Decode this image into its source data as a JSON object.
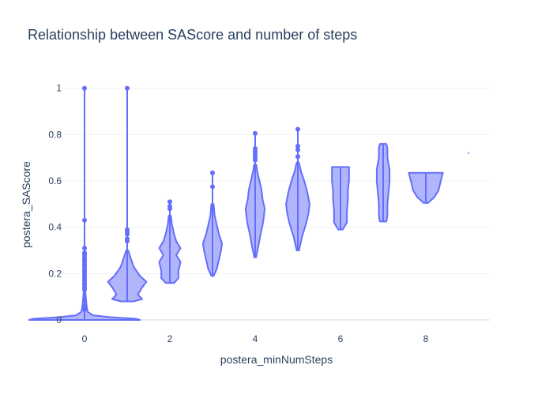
{
  "chart_data": {
    "type": "violin",
    "title": "Relationship between SAScore and number of steps",
    "xlabel": "postera_minNumSteps",
    "ylabel": "postera_SAScore",
    "xlim": [
      -0.5,
      9.5
    ],
    "ylim": [
      0,
      1.04
    ],
    "x_ticks": [
      0,
      2,
      4,
      6,
      8
    ],
    "y_ticks": [
      0,
      0.2,
      0.4,
      0.6,
      0.8,
      1
    ],
    "y_tick_labels": [
      "0",
      "0.2",
      "0.4",
      "0.6",
      "0.8",
      "1"
    ],
    "grid": true,
    "legend": "none",
    "colors": {
      "line": "#636efa",
      "fill": "#636efa",
      "grid": "#eef0f5",
      "text": "#2a3f5f"
    },
    "violins": [
      {
        "x": 0,
        "whisker": [
          0,
          1.0
        ],
        "profile": [
          [
            0.0,
            0.26
          ],
          [
            0.005,
            0.24
          ],
          [
            0.012,
            0.12
          ],
          [
            0.02,
            0.04
          ],
          [
            0.035,
            0.015
          ],
          [
            0.06,
            0.01
          ],
          [
            0.12,
            0.004
          ]
        ],
        "outliers": [
          0.045,
          0.06,
          0.13,
          0.14,
          0.15,
          0.16,
          0.17,
          0.18,
          0.19,
          0.2,
          0.21,
          0.22,
          0.23,
          0.24,
          0.25,
          0.26,
          0.27,
          0.28,
          0.29,
          0.31,
          0.43,
          1.0
        ]
      },
      {
        "x": 1,
        "whisker": [
          0.08,
          1.0
        ],
        "profile": [
          [
            0.08,
            0.03
          ],
          [
            0.09,
            0.07
          ],
          [
            0.11,
            0.05
          ],
          [
            0.14,
            0.07
          ],
          [
            0.165,
            0.09
          ],
          [
            0.19,
            0.06
          ],
          [
            0.23,
            0.03
          ],
          [
            0.27,
            0.015
          ],
          [
            0.3,
            0.005
          ]
        ],
        "outliers": [
          0.34,
          0.35,
          0.37,
          0.38,
          0.39,
          1.0
        ]
      },
      {
        "x": 2,
        "whisker": [
          0.16,
          0.51
        ],
        "profile": [
          [
            0.16,
            0.02
          ],
          [
            0.18,
            0.04
          ],
          [
            0.21,
            0.04
          ],
          [
            0.25,
            0.05
          ],
          [
            0.28,
            0.03
          ],
          [
            0.31,
            0.05
          ],
          [
            0.34,
            0.03
          ],
          [
            0.37,
            0.02
          ],
          [
            0.41,
            0.01
          ],
          [
            0.45,
            0.005
          ]
        ],
        "outliers": [
          0.48,
          0.49,
          0.51
        ]
      },
      {
        "x": 3,
        "whisker": [
          0.19,
          0.635
        ],
        "profile": [
          [
            0.19,
            0.005
          ],
          [
            0.22,
            0.02
          ],
          [
            0.26,
            0.03
          ],
          [
            0.3,
            0.04
          ],
          [
            0.33,
            0.045
          ],
          [
            0.37,
            0.03
          ],
          [
            0.41,
            0.02
          ],
          [
            0.45,
            0.01
          ],
          [
            0.5,
            0.005
          ]
        ],
        "outliers": [
          0.575,
          0.635
        ]
      },
      {
        "x": 4,
        "whisker": [
          0.27,
          0.805
        ],
        "profile": [
          [
            0.27,
            0.004
          ],
          [
            0.32,
            0.015
          ],
          [
            0.37,
            0.025
          ],
          [
            0.41,
            0.035
          ],
          [
            0.44,
            0.04
          ],
          [
            0.48,
            0.045
          ],
          [
            0.52,
            0.035
          ],
          [
            0.56,
            0.03
          ],
          [
            0.6,
            0.02
          ],
          [
            0.64,
            0.01
          ],
          [
            0.67,
            0.005
          ]
        ],
        "outliers": [
          0.69,
          0.7,
          0.71,
          0.72,
          0.73,
          0.74,
          0.805
        ]
      },
      {
        "x": 5,
        "whisker": [
          0.3,
          0.823
        ],
        "profile": [
          [
            0.3,
            0.005
          ],
          [
            0.36,
            0.02
          ],
          [
            0.42,
            0.04
          ],
          [
            0.46,
            0.05
          ],
          [
            0.5,
            0.055
          ],
          [
            0.55,
            0.045
          ],
          [
            0.6,
            0.03
          ],
          [
            0.64,
            0.015
          ],
          [
            0.68,
            0.005
          ]
        ],
        "outliers": [
          0.705,
          0.735,
          0.75,
          0.823
        ]
      },
      {
        "x": 6,
        "whisker": [
          0.39,
          0.66
        ],
        "profile": [
          [
            0.39,
            0.01
          ],
          [
            0.42,
            0.03
          ],
          [
            0.47,
            0.03
          ],
          [
            0.52,
            0.035
          ],
          [
            0.56,
            0.035
          ],
          [
            0.6,
            0.04
          ],
          [
            0.64,
            0.04
          ],
          [
            0.66,
            0.04
          ]
        ],
        "outliers": []
      },
      {
        "x": 7,
        "whisker": [
          0.425,
          0.76
        ],
        "profile": [
          [
            0.425,
            0.015
          ],
          [
            0.45,
            0.02
          ],
          [
            0.5,
            0.02
          ],
          [
            0.55,
            0.025
          ],
          [
            0.6,
            0.03
          ],
          [
            0.65,
            0.03
          ],
          [
            0.7,
            0.02
          ],
          [
            0.74,
            0.02
          ],
          [
            0.76,
            0.015
          ]
        ],
        "outliers": []
      },
      {
        "x": 8,
        "whisker": [
          0.505,
          0.635
        ],
        "profile": [
          [
            0.505,
            0.01
          ],
          [
            0.53,
            0.04
          ],
          [
            0.56,
            0.06
          ],
          [
            0.6,
            0.07
          ],
          [
            0.635,
            0.08
          ]
        ],
        "outliers": []
      },
      {
        "x": 9,
        "whisker": [
          0.72,
          0.72
        ],
        "profile": [],
        "outliers": []
      }
    ]
  }
}
